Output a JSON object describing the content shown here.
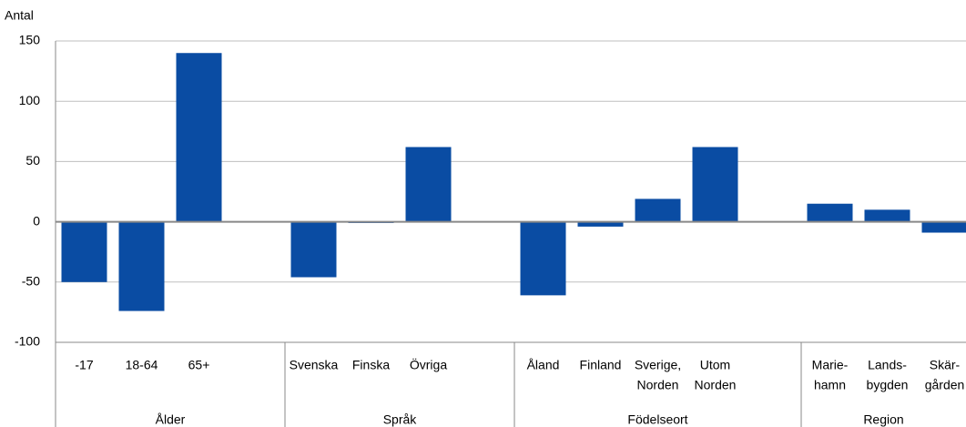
{
  "chart_data": {
    "type": "bar",
    "y_label": "Antal",
    "color": "#0a4ca3",
    "ylim": [
      -100,
      150
    ],
    "yticks": [
      -100,
      -50,
      0,
      50,
      100,
      150
    ],
    "grid": true,
    "groups": [
      {
        "name": "Ålder",
        "categories": [
          "-17",
          "18-64",
          "65+",
          null
        ],
        "values": [
          -50,
          -74,
          140,
          null
        ]
      },
      {
        "name": "Språk",
        "categories": [
          "Svenska",
          "Finska",
          "Övriga",
          null
        ],
        "values": [
          -46,
          -1,
          62,
          null
        ]
      },
      {
        "name": "Födelseort",
        "categories": [
          "Åland",
          "Finland",
          [
            "Sverige,",
            "Norden"
          ],
          [
            "Utom",
            "Norden"
          ],
          null
        ],
        "values": [
          -61,
          -4,
          19,
          62,
          null
        ]
      },
      {
        "name": "Region",
        "categories": [
          [
            "Marie-",
            "hamn"
          ],
          [
            "Lands-",
            "bygden"
          ],
          [
            "Skär-",
            "gården"
          ]
        ],
        "values": [
          15,
          10,
          -9
        ]
      }
    ]
  }
}
